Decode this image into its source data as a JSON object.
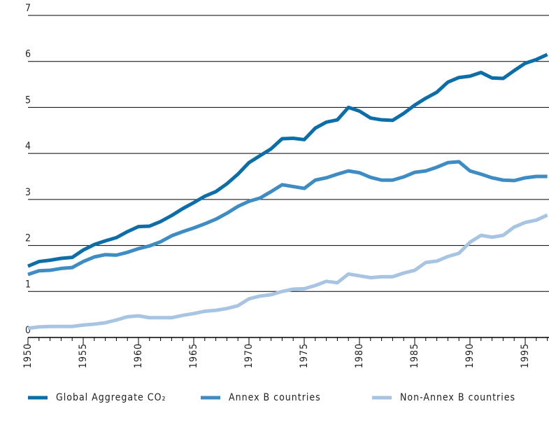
{
  "chart_data": {
    "type": "line",
    "x": [
      1950,
      1951,
      1952,
      1953,
      1954,
      1955,
      1956,
      1957,
      1958,
      1959,
      1960,
      1961,
      1962,
      1963,
      1964,
      1965,
      1966,
      1967,
      1968,
      1969,
      1970,
      1971,
      1972,
      1973,
      1974,
      1975,
      1976,
      1977,
      1978,
      1979,
      1980,
      1981,
      1982,
      1983,
      1984,
      1985,
      1986,
      1987,
      1988,
      1989,
      1990,
      1991,
      1992,
      1993,
      1994,
      1995,
      1996,
      1997
    ],
    "series": [
      {
        "name": "Global Aggregate CO₂",
        "color": "#0b6ea8",
        "values": [
          1.55,
          1.65,
          1.68,
          1.72,
          1.74,
          1.9,
          2.02,
          2.1,
          2.17,
          2.3,
          2.41,
          2.42,
          2.52,
          2.65,
          2.8,
          2.93,
          3.07,
          3.17,
          3.34,
          3.55,
          3.8,
          3.95,
          4.1,
          4.32,
          4.33,
          4.3,
          4.55,
          4.68,
          4.73,
          5.0,
          4.92,
          4.77,
          4.73,
          4.72,
          4.87,
          5.05,
          5.2,
          5.33,
          5.55,
          5.65,
          5.68,
          5.76,
          5.64,
          5.63,
          5.8,
          5.96,
          6.04,
          6.15
        ]
      },
      {
        "name": "Annex B countries",
        "color": "#3d8cc4",
        "values": [
          1.37,
          1.45,
          1.46,
          1.5,
          1.52,
          1.65,
          1.75,
          1.8,
          1.79,
          1.85,
          1.93,
          1.99,
          2.08,
          2.21,
          2.3,
          2.38,
          2.47,
          2.57,
          2.7,
          2.85,
          2.96,
          3.03,
          3.17,
          3.32,
          3.28,
          3.24,
          3.42,
          3.47,
          3.55,
          3.62,
          3.58,
          3.48,
          3.42,
          3.42,
          3.49,
          3.59,
          3.62,
          3.7,
          3.8,
          3.82,
          3.62,
          3.55,
          3.47,
          3.42,
          3.41,
          3.47,
          3.5,
          3.5
        ]
      },
      {
        "name": "Non-Annex B countries",
        "color": "#a7c4e2",
        "values": [
          0.2,
          0.23,
          0.24,
          0.24,
          0.24,
          0.27,
          0.29,
          0.32,
          0.38,
          0.45,
          0.47,
          0.43,
          0.43,
          0.43,
          0.48,
          0.52,
          0.57,
          0.59,
          0.63,
          0.69,
          0.84,
          0.9,
          0.93,
          1.0,
          1.05,
          1.06,
          1.13,
          1.22,
          1.19,
          1.38,
          1.34,
          1.3,
          1.32,
          1.32,
          1.4,
          1.46,
          1.63,
          1.66,
          1.76,
          1.83,
          2.07,
          2.22,
          2.18,
          2.22,
          2.4,
          2.5,
          2.55,
          2.66
        ]
      }
    ],
    "xlim": [
      1950,
      1997
    ],
    "xticks": [
      1950,
      1955,
      1960,
      1965,
      1970,
      1975,
      1980,
      1985,
      1990,
      1995
    ],
    "ylim": [
      0,
      7
    ],
    "yticks": [
      0,
      1,
      2,
      3,
      4,
      5,
      6,
      7
    ],
    "grid": true
  }
}
